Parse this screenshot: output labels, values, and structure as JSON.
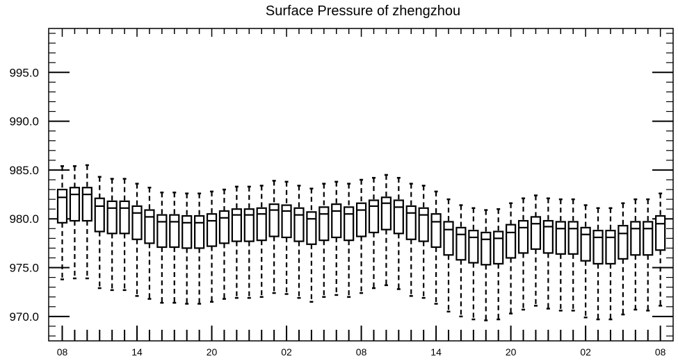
{
  "chart_data": {
    "type": "box",
    "title": "Surface Pressure of zhengzhou",
    "xlabel": "",
    "ylabel": "",
    "ylim": [
      967.5,
      999.5
    ],
    "yticks": [
      970.0,
      975.0,
      980.0,
      985.0,
      990.0,
      995.0
    ],
    "ytick_labels": [
      "970.0",
      "975.0",
      "980.0",
      "985.0",
      "990.0",
      "995.0"
    ],
    "xtick_labels": [
      "08",
      "14",
      "20",
      "02",
      "08",
      "14",
      "20",
      "02",
      "08"
    ],
    "xtick_positions": [
      0,
      6,
      12,
      18,
      24,
      30,
      36,
      42,
      48
    ],
    "grid": false,
    "boxes": [
      {
        "x": 0,
        "whisker_low": 973.8,
        "q1": 979.6,
        "median": 982.2,
        "q3": 983.0,
        "whisker_high": 985.4
      },
      {
        "x": 1,
        "whisker_low": 973.9,
        "q1": 979.8,
        "median": 982.5,
        "q3": 983.2,
        "whisker_high": 985.4
      },
      {
        "x": 2,
        "whisker_low": 973.9,
        "q1": 979.8,
        "median": 982.5,
        "q3": 983.2,
        "whisker_high": 985.5
      },
      {
        "x": 3,
        "whisker_low": 972.9,
        "q1": 978.7,
        "median": 981.3,
        "q3": 982.1,
        "whisker_high": 984.3
      },
      {
        "x": 4,
        "whisker_low": 972.7,
        "q1": 978.5,
        "median": 981.1,
        "q3": 981.8,
        "whisker_high": 984.1
      },
      {
        "x": 5,
        "whisker_low": 972.7,
        "q1": 978.5,
        "median": 981.1,
        "q3": 981.8,
        "whisker_high": 984.1
      },
      {
        "x": 6,
        "whisker_low": 972.1,
        "q1": 977.9,
        "median": 980.6,
        "q3": 981.3,
        "whisker_high": 983.6
      },
      {
        "x": 7,
        "whisker_low": 971.8,
        "q1": 977.5,
        "median": 980.2,
        "q3": 980.9,
        "whisker_high": 983.2
      },
      {
        "x": 8,
        "whisker_low": 971.4,
        "q1": 977.1,
        "median": 979.7,
        "q3": 980.4,
        "whisker_high": 982.7
      },
      {
        "x": 9,
        "whisker_low": 971.4,
        "q1": 977.1,
        "median": 979.7,
        "q3": 980.4,
        "whisker_high": 982.7
      },
      {
        "x": 10,
        "whisker_low": 971.3,
        "q1": 977.0,
        "median": 979.6,
        "q3": 980.3,
        "whisker_high": 982.6
      },
      {
        "x": 11,
        "whisker_low": 971.3,
        "q1": 977.0,
        "median": 979.6,
        "q3": 980.3,
        "whisker_high": 982.6
      },
      {
        "x": 12,
        "whisker_low": 971.5,
        "q1": 977.2,
        "median": 979.8,
        "q3": 980.5,
        "whisker_high": 982.8
      },
      {
        "x": 13,
        "whisker_low": 971.8,
        "q1": 977.5,
        "median": 980.1,
        "q3": 980.8,
        "whisker_high": 983.0
      },
      {
        "x": 14,
        "whisker_low": 971.9,
        "q1": 977.7,
        "median": 980.4,
        "q3": 981.0,
        "whisker_high": 983.3
      },
      {
        "x": 15,
        "whisker_low": 971.9,
        "q1": 977.7,
        "median": 980.4,
        "q3": 981.0,
        "whisker_high": 983.3
      },
      {
        "x": 16,
        "whisker_low": 972.0,
        "q1": 977.8,
        "median": 980.5,
        "q3": 981.1,
        "whisker_high": 983.4
      },
      {
        "x": 17,
        "whisker_low": 972.4,
        "q1": 978.2,
        "median": 980.9,
        "q3": 981.5,
        "whisker_high": 983.9
      },
      {
        "x": 18,
        "whisker_low": 972.3,
        "q1": 978.1,
        "median": 980.8,
        "q3": 981.4,
        "whisker_high": 983.8
      },
      {
        "x": 19,
        "whisker_low": 971.9,
        "q1": 977.7,
        "median": 980.4,
        "q3": 981.1,
        "whisker_high": 983.4
      },
      {
        "x": 20,
        "whisker_low": 971.5,
        "q1": 977.4,
        "median": 980.0,
        "q3": 980.7,
        "whisker_high": 983.1
      },
      {
        "x": 21,
        "whisker_low": 972.0,
        "q1": 977.8,
        "median": 980.5,
        "q3": 981.2,
        "whisker_high": 983.6
      },
      {
        "x": 22,
        "whisker_low": 972.2,
        "q1": 978.1,
        "median": 980.8,
        "q3": 981.5,
        "whisker_high": 983.8
      },
      {
        "x": 23,
        "whisker_low": 972.0,
        "q1": 977.8,
        "median": 980.5,
        "q3": 981.2,
        "whisker_high": 983.6
      },
      {
        "x": 24,
        "whisker_low": 972.4,
        "q1": 978.2,
        "median": 980.9,
        "q3": 981.6,
        "whisker_high": 984.0
      },
      {
        "x": 25,
        "whisker_low": 972.9,
        "q1": 978.6,
        "median": 981.3,
        "q3": 981.9,
        "whisker_high": 984.2
      },
      {
        "x": 26,
        "whisker_low": 973.2,
        "q1": 978.9,
        "median": 981.6,
        "q3": 982.2,
        "whisker_high": 984.5
      },
      {
        "x": 27,
        "whisker_low": 972.8,
        "q1": 978.5,
        "median": 981.2,
        "q3": 981.9,
        "whisker_high": 984.2
      },
      {
        "x": 28,
        "whisker_low": 972.1,
        "q1": 977.9,
        "median": 980.6,
        "q3": 981.3,
        "whisker_high": 983.6
      },
      {
        "x": 29,
        "whisker_low": 971.9,
        "q1": 977.7,
        "median": 980.4,
        "q3": 981.1,
        "whisker_high": 983.4
      },
      {
        "x": 30,
        "whisker_low": 971.3,
        "q1": 977.1,
        "median": 979.7,
        "q3": 980.5,
        "whisker_high": 982.8
      },
      {
        "x": 31,
        "whisker_low": 970.5,
        "q1": 976.3,
        "median": 978.9,
        "q3": 979.7,
        "whisker_high": 982.0
      },
      {
        "x": 32,
        "whisker_low": 970.0,
        "q1": 975.8,
        "median": 978.4,
        "q3": 979.1,
        "whisker_high": 981.4
      },
      {
        "x": 33,
        "whisker_low": 969.7,
        "q1": 975.5,
        "median": 978.1,
        "q3": 978.8,
        "whisker_high": 981.1
      },
      {
        "x": 34,
        "whisker_low": 969.6,
        "q1": 975.3,
        "median": 977.9,
        "q3": 978.6,
        "whisker_high": 980.9
      },
      {
        "x": 35,
        "whisker_low": 969.7,
        "q1": 975.4,
        "median": 978.0,
        "q3": 978.7,
        "whisker_high": 981.0
      },
      {
        "x": 36,
        "whisker_low": 970.3,
        "q1": 976.0,
        "median": 978.6,
        "q3": 979.4,
        "whisker_high": 981.6
      },
      {
        "x": 37,
        "whisker_low": 970.7,
        "q1": 976.5,
        "median": 979.1,
        "q3": 979.8,
        "whisker_high": 982.1
      },
      {
        "x": 38,
        "whisker_low": 971.1,
        "q1": 976.9,
        "median": 979.5,
        "q3": 980.2,
        "whisker_high": 982.4
      },
      {
        "x": 39,
        "whisker_low": 970.8,
        "q1": 976.5,
        "median": 979.2,
        "q3": 979.8,
        "whisker_high": 982.1
      },
      {
        "x": 40,
        "whisker_low": 970.6,
        "q1": 976.4,
        "median": 979.0,
        "q3": 979.7,
        "whisker_high": 982.0
      },
      {
        "x": 41,
        "whisker_low": 970.6,
        "q1": 976.4,
        "median": 979.0,
        "q3": 979.7,
        "whisker_high": 982.0
      },
      {
        "x": 42,
        "whisker_low": 969.9,
        "q1": 975.7,
        "median": 978.4,
        "q3": 979.1,
        "whisker_high": 981.4
      },
      {
        "x": 43,
        "whisker_low": 969.7,
        "q1": 975.4,
        "median": 978.1,
        "q3": 978.8,
        "whisker_high": 981.1
      },
      {
        "x": 44,
        "whisker_low": 969.7,
        "q1": 975.4,
        "median": 978.1,
        "q3": 978.8,
        "whisker_high": 981.1
      },
      {
        "x": 45,
        "whisker_low": 970.2,
        "q1": 975.9,
        "median": 978.5,
        "q3": 979.3,
        "whisker_high": 981.6
      },
      {
        "x": 46,
        "whisker_low": 970.7,
        "q1": 976.3,
        "median": 979.0,
        "q3": 979.7,
        "whisker_high": 982.0
      },
      {
        "x": 47,
        "whisker_low": 970.6,
        "q1": 976.3,
        "median": 979.0,
        "q3": 979.7,
        "whisker_high": 982.0
      },
      {
        "x": 48,
        "whisker_low": 971.1,
        "q1": 976.8,
        "median": 979.5,
        "q3": 980.3,
        "whisker_high": 982.6
      }
    ],
    "colors": {
      "stroke": "#000000",
      "background": "#ffffff"
    }
  }
}
